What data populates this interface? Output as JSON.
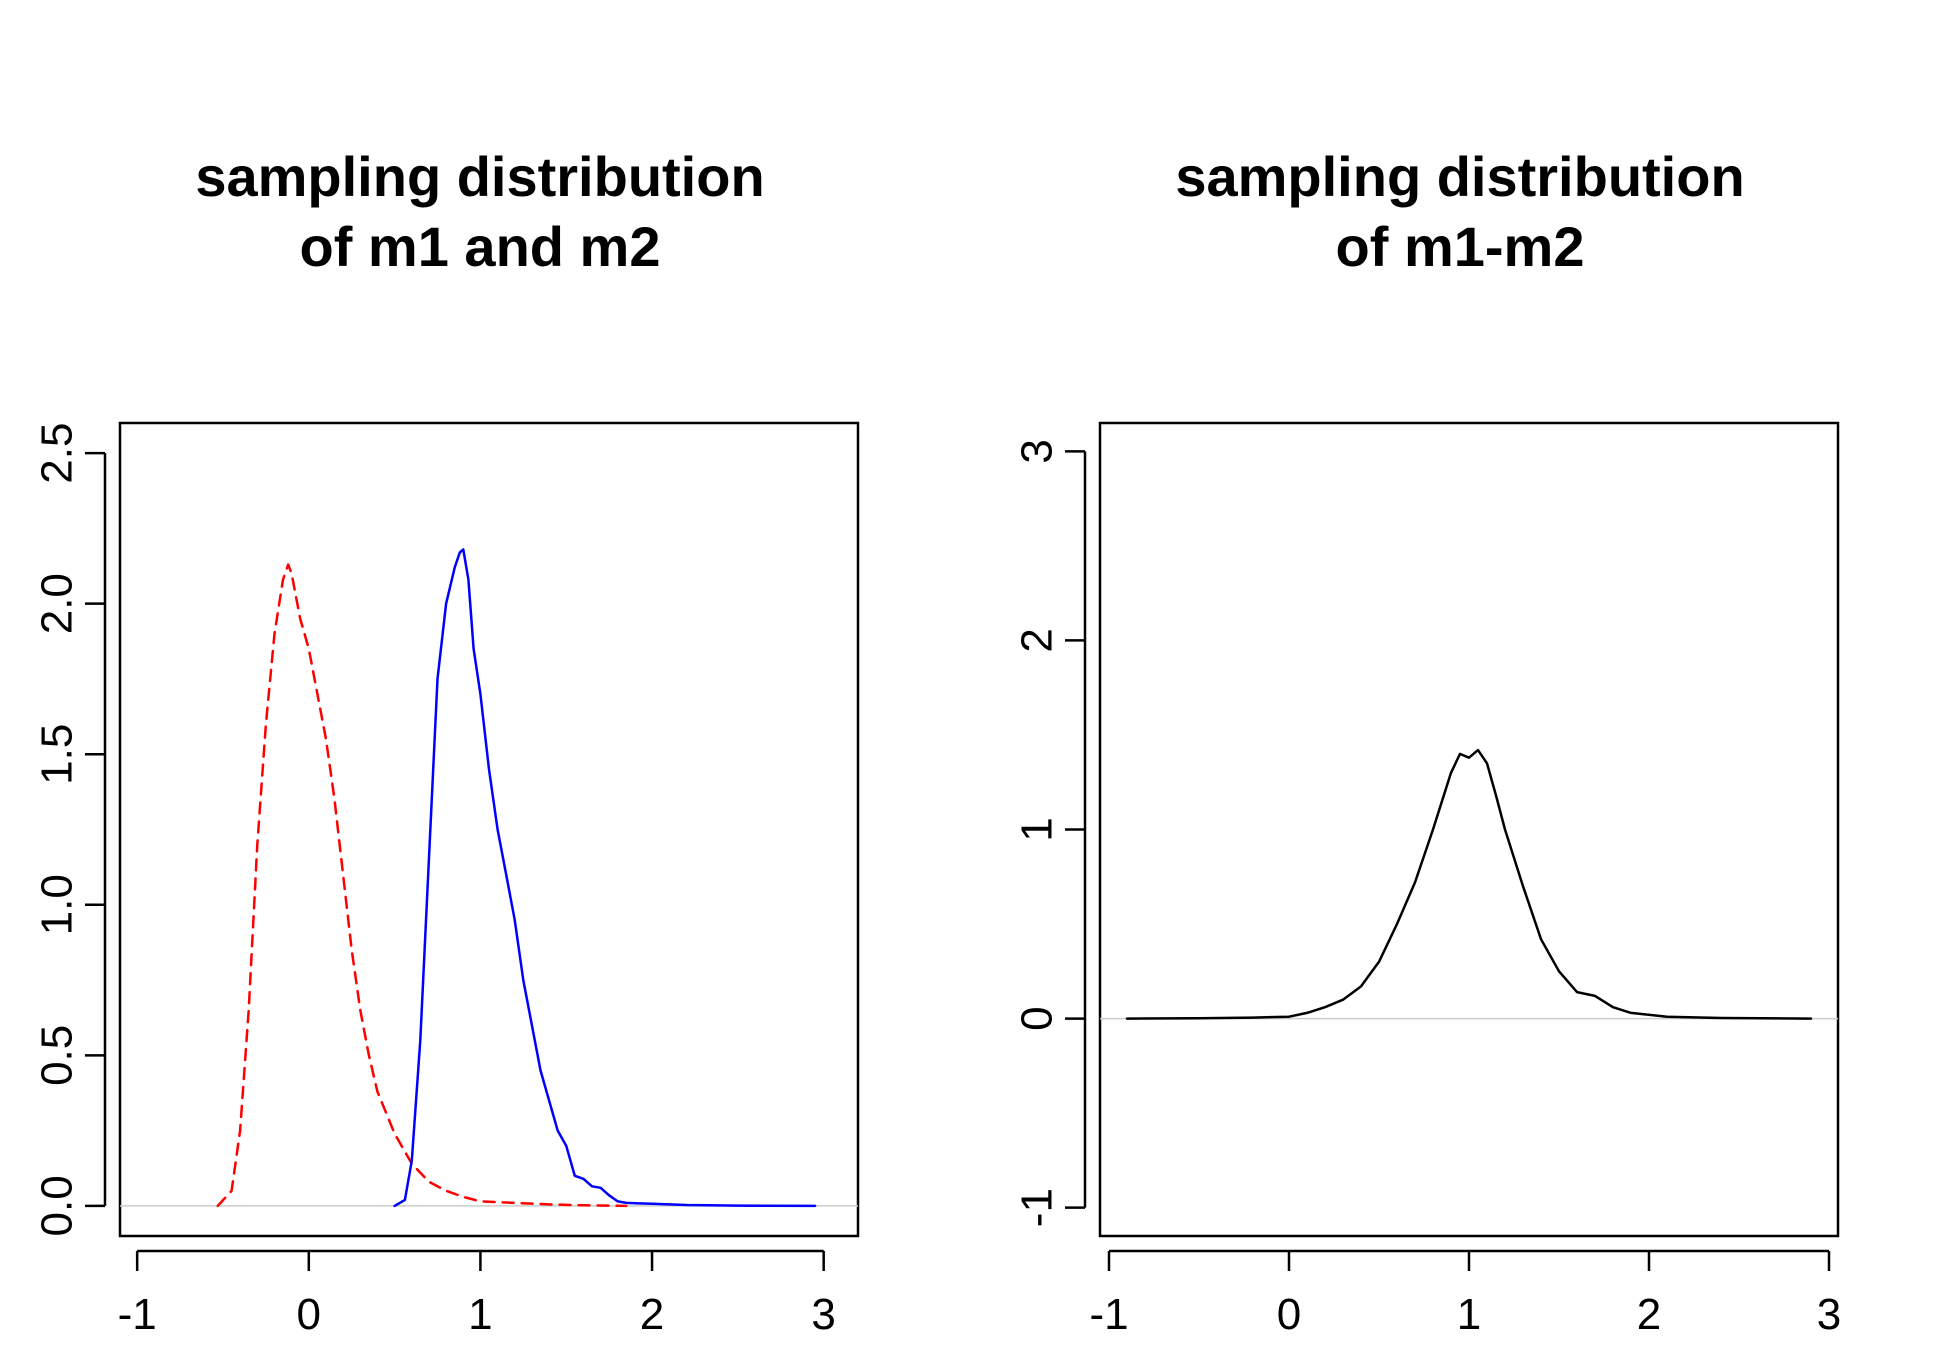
{
  "chart_data": [
    {
      "type": "line",
      "title_lines": [
        "sampling distribution",
        "of m1 and m2"
      ],
      "xlabel": "",
      "ylabel": "",
      "xlim": [
        -1.1,
        3.2
      ],
      "ylim": [
        -0.1,
        2.6
      ],
      "xticks": [
        -1,
        0,
        1,
        2,
        3
      ],
      "xtick_labels": [
        "-1",
        "0",
        "1",
        "2",
        "3"
      ],
      "yticks": [
        0,
        0.5,
        1,
        1.5,
        2,
        2.5
      ],
      "ytick_labels": [
        "0.0",
        "0.5",
        "1.0",
        "1.5",
        "2.0",
        "2.5"
      ],
      "reference_line_y": 0,
      "reference_line_color": "#cccccc",
      "grid": false,
      "legend": "none",
      "series": [
        {
          "color": "#ff0000",
          "style": "dashed",
          "x": [
            -0.53,
            -0.45,
            -0.4,
            -0.35,
            -0.3,
            -0.25,
            -0.2,
            -0.15,
            -0.12,
            -0.1,
            -0.05,
            0.0,
            0.05,
            0.1,
            0.15,
            0.2,
            0.25,
            0.3,
            0.35,
            0.4,
            0.5,
            0.6,
            0.7,
            0.8,
            0.9,
            1.0,
            1.2,
            1.4,
            1.6,
            1.85
          ],
          "y": [
            0.0,
            0.05,
            0.25,
            0.65,
            1.2,
            1.6,
            1.9,
            2.08,
            2.13,
            2.1,
            1.95,
            1.85,
            1.7,
            1.55,
            1.35,
            1.1,
            0.85,
            0.65,
            0.5,
            0.38,
            0.24,
            0.14,
            0.08,
            0.05,
            0.03,
            0.015,
            0.01,
            0.005,
            0.002,
            0.0
          ]
        },
        {
          "color": "#0000ff",
          "style": "solid",
          "x": [
            0.5,
            0.56,
            0.6,
            0.65,
            0.7,
            0.75,
            0.8,
            0.85,
            0.88,
            0.9,
            0.93,
            0.96,
            1.0,
            1.05,
            1.1,
            1.15,
            1.2,
            1.25,
            1.3,
            1.35,
            1.4,
            1.45,
            1.5,
            1.55,
            1.6,
            1.65,
            1.7,
            1.75,
            1.8,
            1.85,
            2.0,
            2.2,
            2.5,
            2.95
          ],
          "y": [
            0.0,
            0.02,
            0.15,
            0.55,
            1.15,
            1.75,
            2.0,
            2.12,
            2.17,
            2.18,
            2.08,
            1.85,
            1.7,
            1.45,
            1.25,
            1.1,
            0.95,
            0.75,
            0.6,
            0.45,
            0.35,
            0.25,
            0.2,
            0.1,
            0.09,
            0.065,
            0.06,
            0.035,
            0.015,
            0.01,
            0.007,
            0.003,
            0.001,
            0.0
          ]
        }
      ]
    },
    {
      "type": "line",
      "title_lines": [
        "sampling distribution",
        "of m1-m2"
      ],
      "xlabel": "",
      "ylabel": "",
      "xlim": [
        -1.05,
        3.05
      ],
      "ylim": [
        -1.15,
        3.15
      ],
      "xticks": [
        -1,
        0,
        1,
        2,
        3
      ],
      "xtick_labels": [
        "-1",
        "0",
        "1",
        "2",
        "3"
      ],
      "yticks": [
        -1,
        0,
        1,
        2,
        3
      ],
      "ytick_labels": [
        "-1",
        "0",
        "1",
        "2",
        "3"
      ],
      "reference_line_y": 0,
      "reference_line_color": "#cccccc",
      "grid": false,
      "legend": "none",
      "series": [
        {
          "color": "#000000",
          "style": "solid",
          "x": [
            -0.9,
            -0.5,
            -0.2,
            0.0,
            0.1,
            0.2,
            0.3,
            0.4,
            0.5,
            0.6,
            0.7,
            0.8,
            0.85,
            0.9,
            0.95,
            1.0,
            1.05,
            1.1,
            1.15,
            1.2,
            1.3,
            1.4,
            1.5,
            1.6,
            1.7,
            1.8,
            1.9,
            2.1,
            2.4,
            2.9
          ],
          "y": [
            0.0,
            0.002,
            0.005,
            0.01,
            0.03,
            0.06,
            0.1,
            0.17,
            0.3,
            0.5,
            0.72,
            1.0,
            1.15,
            1.3,
            1.4,
            1.38,
            1.42,
            1.35,
            1.18,
            1.0,
            0.7,
            0.42,
            0.25,
            0.14,
            0.12,
            0.06,
            0.03,
            0.01,
            0.003,
            0.0
          ]
        }
      ]
    }
  ]
}
